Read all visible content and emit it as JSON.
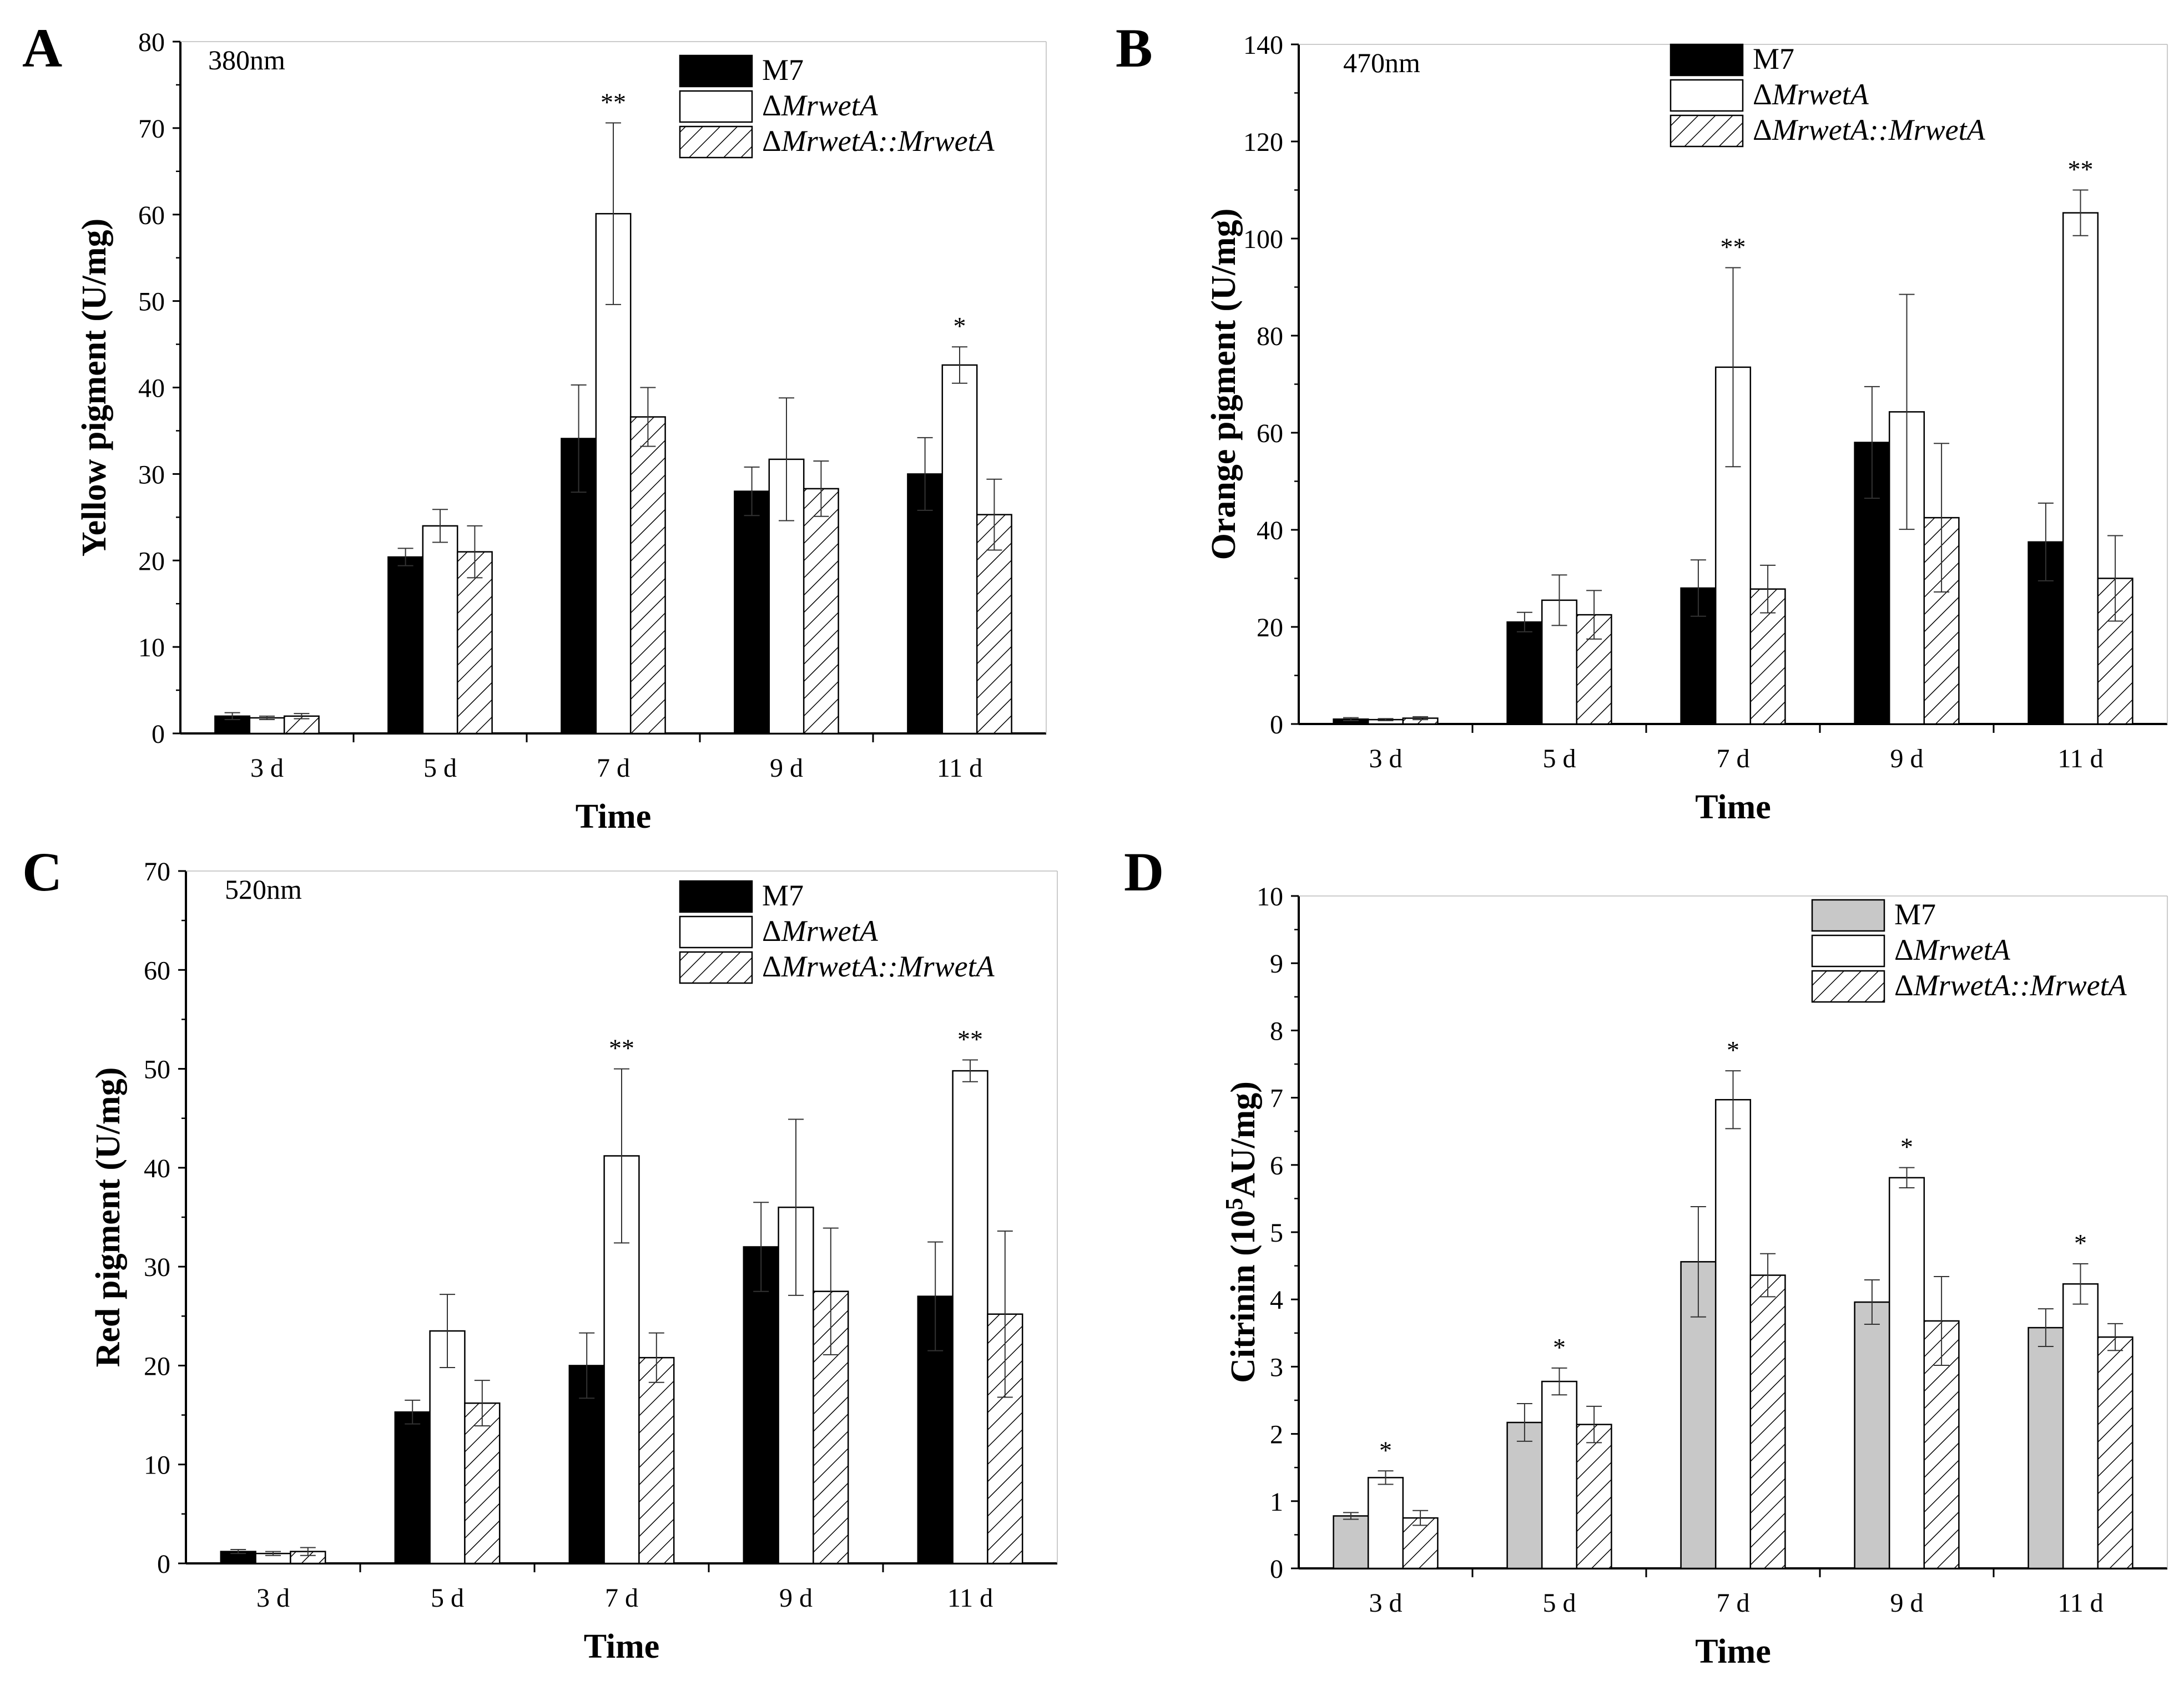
{
  "figure": {
    "colors": {
      "m7_dark": "#000000",
      "m7_gray": "#c8c8c8",
      "mutant": "#ffffff",
      "complement_hatch": "#000000",
      "axis": "#000000"
    }
  },
  "chart_data": [
    {
      "panel": "A",
      "type": "bar",
      "annotation": "380nm",
      "xlabel": "Time",
      "ylabel": "Yellow pigment (U/mg)",
      "ylim": [
        0,
        80
      ],
      "yticks": [
        "0",
        "10",
        "20",
        "30",
        "40",
        "50",
        "60",
        "70",
        "80"
      ],
      "categories": [
        "3 d",
        "5 d",
        "7 d",
        "9 d",
        "11 d"
      ],
      "legend": [
        "M7",
        "ΔMrwetA",
        "ΔMrwetA::MrwetA"
      ],
      "series": [
        {
          "name": "M7",
          "style": "solid-black",
          "values": [
            2.0,
            20.4,
            34.1,
            28.0,
            30.0
          ],
          "errors": [
            0.4,
            1.0,
            6.2,
            2.8,
            4.2
          ]
        },
        {
          "name": "ΔMrwetA",
          "style": "white",
          "values": [
            1.8,
            24.0,
            60.1,
            31.7,
            42.6
          ],
          "errors": [
            0.2,
            1.9,
            10.5,
            7.1,
            2.1
          ]
        },
        {
          "name": "ΔMrwetA::MrwetA",
          "style": "hatched",
          "values": [
            2.0,
            21.0,
            36.6,
            28.3,
            25.3
          ],
          "errors": [
            0.3,
            3.0,
            3.4,
            3.2,
            4.1
          ]
        }
      ],
      "significance": [
        {
          "category": "7 d",
          "label": "**"
        },
        {
          "category": "11 d",
          "label": "*"
        }
      ]
    },
    {
      "panel": "B",
      "type": "bar",
      "annotation": "470nm",
      "xlabel": "Time",
      "ylabel": "Orange pigment (U/mg)",
      "ylim": [
        0,
        140
      ],
      "yticks": [
        "0",
        "20",
        "40",
        "60",
        "80",
        "100",
        "120",
        "140"
      ],
      "categories": [
        "3 d",
        "5 d",
        "7 d",
        "9 d",
        "11 d"
      ],
      "legend": [
        "M7",
        "ΔMrwetA",
        "ΔMrwetA::MrwetA"
      ],
      "series": [
        {
          "name": "M7",
          "style": "solid-black",
          "values": [
            1.0,
            21.0,
            28.0,
            58.0,
            37.5
          ],
          "errors": [
            0.3,
            2.0,
            5.8,
            11.5,
            8.0
          ]
        },
        {
          "name": "ΔMrwetA",
          "style": "white",
          "values": [
            0.9,
            25.5,
            73.5,
            64.3,
            105.3
          ],
          "errors": [
            0.2,
            5.2,
            20.5,
            24.2,
            4.7
          ]
        },
        {
          "name": "ΔMrwetA::MrwetA",
          "style": "hatched",
          "values": [
            1.2,
            22.5,
            27.8,
            42.5,
            30.0
          ],
          "errors": [
            0.3,
            5.0,
            4.9,
            15.3,
            8.8
          ]
        }
      ],
      "significance": [
        {
          "category": "7 d",
          "label": "**"
        },
        {
          "category": "11 d",
          "label": "**"
        }
      ]
    },
    {
      "panel": "C",
      "type": "bar",
      "annotation": "520nm",
      "xlabel": "Time",
      "ylabel": "Red pigment (U/mg)",
      "ylim": [
        0,
        70
      ],
      "yticks": [
        "0",
        "10",
        "20",
        "30",
        "40",
        "50",
        "60",
        "70"
      ],
      "categories": [
        "3 d",
        "5 d",
        "7 d",
        "9 d",
        "11 d"
      ],
      "legend": [
        "M7",
        "ΔMrwetA",
        "ΔMrwetA::MrwetA"
      ],
      "series": [
        {
          "name": "M7",
          "style": "solid-black",
          "values": [
            1.2,
            15.3,
            20.0,
            32.0,
            27.0
          ],
          "errors": [
            0.2,
            1.2,
            3.3,
            4.5,
            5.5
          ]
        },
        {
          "name": "ΔMrwetA",
          "style": "white",
          "values": [
            1.0,
            23.5,
            41.2,
            36.0,
            49.8
          ],
          "errors": [
            0.2,
            3.7,
            8.8,
            8.9,
            1.1
          ]
        },
        {
          "name": "ΔMrwetA::MrwetA",
          "style": "hatched",
          "values": [
            1.2,
            16.2,
            20.8,
            27.5,
            25.2
          ],
          "errors": [
            0.4,
            2.3,
            2.5,
            6.4,
            8.4
          ]
        }
      ],
      "significance": [
        {
          "category": "7 d",
          "label": "**"
        },
        {
          "category": "11 d",
          "label": "**"
        }
      ]
    },
    {
      "panel": "D",
      "type": "bar",
      "annotation": "",
      "xlabel": "Time",
      "ylabel_main": "Citrinin (10",
      "ylabel_sup": "5",
      "ylabel_tail": "AU/mg)",
      "ylim": [
        0,
        10
      ],
      "yticks": [
        "0",
        "1",
        "2",
        "3",
        "4",
        "5",
        "6",
        "7",
        "8",
        "9",
        "10"
      ],
      "categories": [
        "3 d",
        "5 d",
        "7 d",
        "9 d",
        "11 d"
      ],
      "legend": [
        "M7",
        "ΔMrwetA",
        "ΔMrwetA::MrwetA"
      ],
      "series": [
        {
          "name": "M7",
          "style": "solid-gray",
          "values": [
            0.78,
            2.17,
            4.56,
            3.96,
            3.58
          ],
          "errors": [
            0.05,
            0.28,
            0.82,
            0.33,
            0.28
          ]
        },
        {
          "name": "ΔMrwetA",
          "style": "white",
          "values": [
            1.35,
            2.78,
            6.97,
            5.81,
            4.23
          ],
          "errors": [
            0.1,
            0.2,
            0.43,
            0.15,
            0.3
          ]
        },
        {
          "name": "ΔMrwetA::MrwetA",
          "style": "hatched",
          "values": [
            0.75,
            2.14,
            4.36,
            3.68,
            3.44
          ],
          "errors": [
            0.11,
            0.27,
            0.32,
            0.66,
            0.2
          ]
        }
      ],
      "significance": [
        {
          "category": "3 d",
          "label": "*"
        },
        {
          "category": "5 d",
          "label": "*"
        },
        {
          "category": "7 d",
          "label": "*"
        },
        {
          "category": "9 d",
          "label": "*"
        },
        {
          "category": "11 d",
          "label": "*"
        }
      ]
    }
  ]
}
